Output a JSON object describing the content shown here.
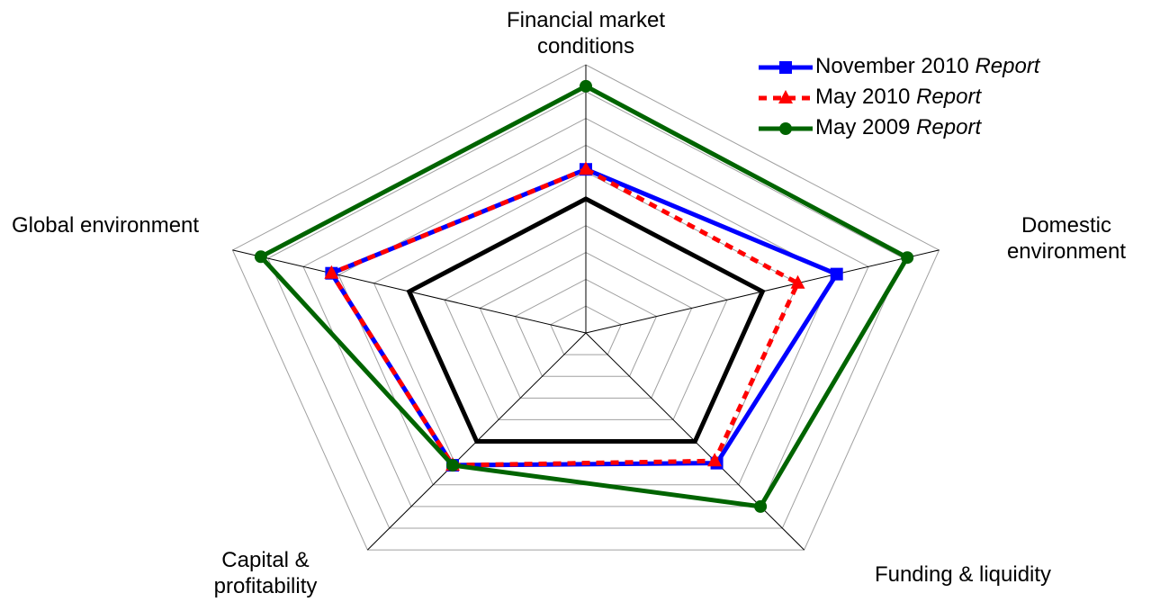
{
  "chart_data": {
    "type": "radar",
    "categories": [
      "Financial market conditions",
      "Domestic environment",
      "Funding & liquidity",
      "Capital & profitability",
      "Global environment"
    ],
    "rlim": [
      0,
      10
    ],
    "rticks": [
      1,
      2,
      3,
      4,
      5,
      6,
      7,
      8,
      9,
      10
    ],
    "grid": true,
    "legend": "upper right",
    "series": [
      {
        "color": "#000000",
        "values": [
          5,
          5,
          5,
          5,
          5
        ]
      },
      {
        "name": "November 2010 Report",
        "color": "#0000ff",
        "values": [
          6.1,
          7.1,
          6,
          6.1,
          7.2
        ]
      },
      {
        "name": "May 2010 Report",
        "color": "#ff0000",
        "values": [
          6.1,
          6,
          5.9,
          6.1,
          7.2
        ]
      },
      {
        "name": "May 2009 Report",
        "color": "#006400",
        "values": [
          9.2,
          9.1,
          8,
          6.1,
          9.2
        ]
      }
    ]
  }
}
